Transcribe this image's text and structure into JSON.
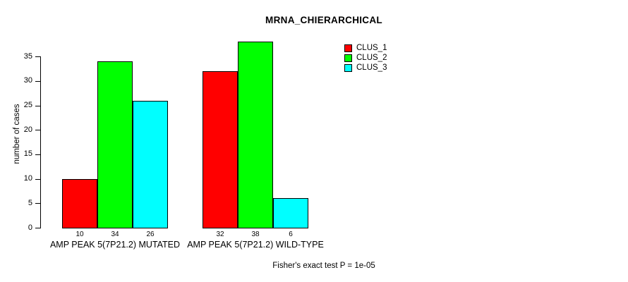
{
  "chart_data": {
    "type": "bar",
    "title": "MRNA_CHIERARCHICAL",
    "ylabel": "number of cases",
    "xlabel": "",
    "ylim": [
      0,
      38
    ],
    "yticks": [
      0,
      5,
      10,
      15,
      20,
      25,
      30,
      35
    ],
    "grid": false,
    "legend_position": "top-right",
    "show_values_under_bars": true,
    "categories": [
      "AMP PEAK 5(7P21.2) MUTATED",
      "AMP PEAK 5(7P21.2) WILD-TYPE"
    ],
    "series": [
      {
        "name": "CLUS_1",
        "color": "#ff0000",
        "values": [
          10,
          32
        ]
      },
      {
        "name": "CLUS_2",
        "color": "#00ff00",
        "values": [
          34,
          38
        ]
      },
      {
        "name": "CLUS_3",
        "color": "#00ffff",
        "values": [
          26,
          6
        ]
      }
    ],
    "annotation": "Fisher's exact test P = 1e-05"
  }
}
